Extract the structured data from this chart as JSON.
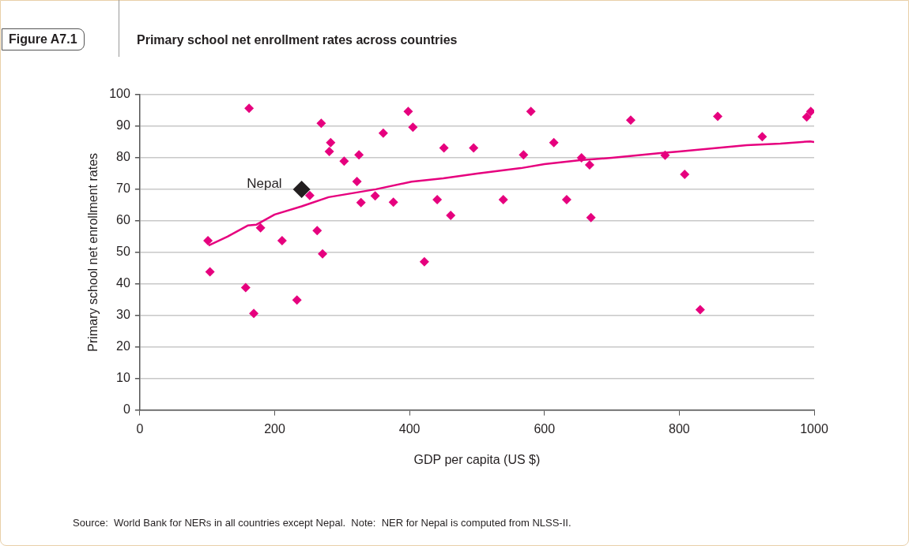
{
  "chart_data": {
    "type": "scatter",
    "title": "Primary school net enrollment rates across countries",
    "xlabel": "GDP per capita (US $)",
    "ylabel": "Primary school net enrollment rates",
    "annotations": [
      "Figure A7.1",
      "Source:  World Bank for NERs in all countries except Nepal.  Note:  NER for Nepal is computed from NLSS-II."
    ],
    "xlim": [
      0,
      1000
    ],
    "xticks": [
      0,
      200,
      400,
      600,
      800,
      1000
    ],
    "ylim": [
      0,
      100
    ],
    "yticks": [
      0,
      10,
      20,
      30,
      40,
      50,
      60,
      70,
      80,
      90,
      100
    ],
    "grid": "y",
    "legend": false,
    "marker": "diamond",
    "series": [
      {
        "type": "scatter",
        "color": "#e6007e",
        "x": [
          101,
          104,
          157,
          169,
          162,
          179,
          211,
          233,
          252,
          263,
          271,
          269,
          283,
          281,
          303,
          325,
          322,
          328,
          349,
          376,
          361,
          398,
          405,
          422,
          441,
          451,
          461,
          495,
          539,
          569,
          580,
          614,
          633,
          655,
          667,
          669,
          728,
          779,
          808,
          831,
          857,
          923,
          989,
          995
        ],
        "values": [
          53.7,
          43.8,
          38.8,
          30.6,
          95.7,
          57.8,
          53.7,
          34.9,
          68,
          56.9,
          49.5,
          90.9,
          84.8,
          82,
          78.9,
          80.9,
          72.5,
          65.8,
          67.9,
          65.9,
          87.8,
          94.7,
          89.7,
          47,
          66.7,
          83.1,
          61.7,
          83.1,
          66.7,
          80.9,
          94.7,
          84.8,
          66.7,
          80,
          77.7,
          61,
          91.9,
          80.8,
          74.7,
          31.8,
          93.1,
          86.7,
          92.9,
          94.7
        ]
      },
      {
        "type": "scatter",
        "name": "Nepal",
        "color": "#231f20",
        "x": [
          240
        ],
        "values": [
          70
        ]
      },
      {
        "type": "line",
        "color": "#e6007e",
        "marker": "none",
        "x": [
          102,
          130,
          160,
          173,
          200,
          240,
          280,
          322,
          350,
          403,
          450,
          500,
          565,
          600,
          653,
          700,
          772,
          800,
          850,
          900,
          950,
          994,
          1000
        ],
        "values": [
          52.2,
          55,
          58.5,
          58.8,
          62,
          64.6,
          67.5,
          69,
          70,
          72.4,
          73.5,
          75,
          76.7,
          78,
          79.2,
          80,
          81.5,
          82,
          83,
          84,
          84.5,
          85.2,
          85
        ]
      }
    ]
  }
}
